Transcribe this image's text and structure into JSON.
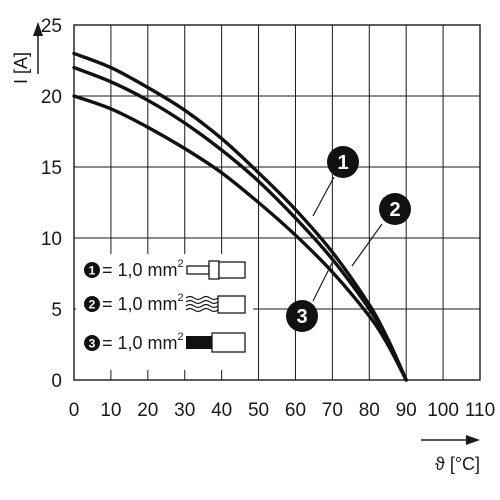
{
  "chart_data": {
    "type": "line",
    "xlabel": "ϑ [°C]",
    "ylabel": "I [A]",
    "xlim": [
      0,
      110
    ],
    "ylim": [
      0,
      25
    ],
    "xticks": [
      "0",
      "10",
      "20",
      "30",
      "40",
      "50",
      "60",
      "70",
      "80",
      "90",
      "100",
      "110"
    ],
    "yticks": [
      "0",
      "5",
      "10",
      "15",
      "20",
      "25"
    ],
    "grid": true,
    "series": [
      {
        "name": "1",
        "x": [
          0,
          10,
          20,
          30,
          40,
          50,
          60,
          70,
          80,
          85,
          90
        ],
        "y": [
          23.0,
          22.0,
          20.6,
          19.0,
          17.0,
          14.6,
          12.0,
          9.0,
          5.3,
          2.9,
          0
        ]
      },
      {
        "name": "2",
        "x": [
          0,
          10,
          20,
          30,
          40,
          50,
          60,
          70,
          80,
          85,
          90
        ],
        "y": [
          22.0,
          21.0,
          19.7,
          18.1,
          16.2,
          14.0,
          11.4,
          8.5,
          5.0,
          2.8,
          0
        ]
      },
      {
        "name": "3",
        "x": [
          0,
          10,
          20,
          30,
          40,
          50,
          60,
          70,
          80,
          85,
          90
        ],
        "y": [
          20.0,
          19.1,
          17.8,
          16.3,
          14.6,
          12.5,
          10.2,
          7.6,
          4.5,
          2.5,
          0
        ]
      }
    ],
    "legend": [
      {
        "num": "1",
        "label": "= 1,0 mm",
        "sup": "2"
      },
      {
        "num": "2",
        "label": "= 1,0 mm",
        "sup": "2"
      },
      {
        "num": "3",
        "label": "= 1,0 mm",
        "sup": "2"
      }
    ]
  }
}
